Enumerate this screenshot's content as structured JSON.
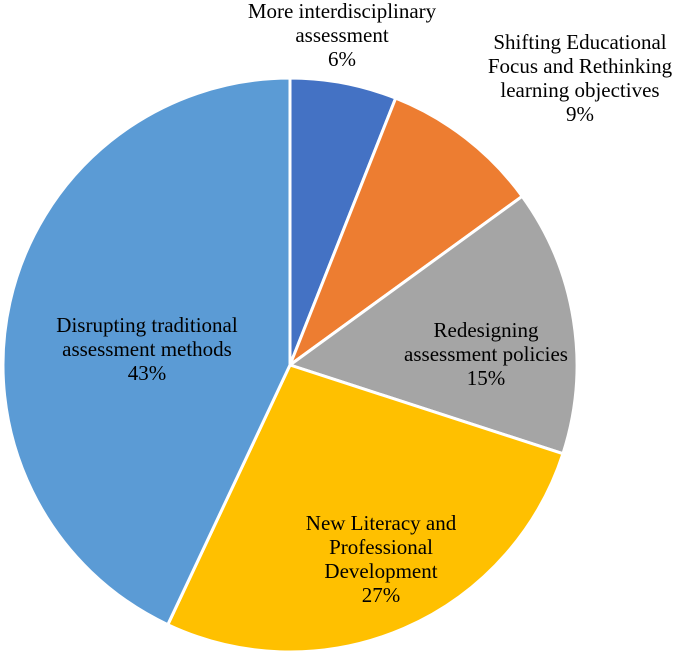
{
  "chart_data": {
    "type": "pie",
    "title": "",
    "start_angle_deg": 0,
    "direction": "clockwise",
    "slices": [
      {
        "label_lines": [
          "More interdisciplinary",
          "assessment"
        ],
        "value": 6,
        "value_label": "6%",
        "color": "#4472C4"
      },
      {
        "label_lines": [
          "Shifting Educational",
          "Focus and Rethinking",
          "learning objectives"
        ],
        "value": 9,
        "value_label": "9%",
        "color": "#ED7D31"
      },
      {
        "label_lines": [
          "Redesigning",
          "assessment policies"
        ],
        "value": 15,
        "value_label": "15%",
        "color": "#A5A5A5"
      },
      {
        "label_lines": [
          "New Literacy and",
          "Professional",
          "Development"
        ],
        "value": 27,
        "value_label": "27%",
        "color": "#FFC000"
      },
      {
        "label_lines": [
          "Disrupting traditional",
          "assessment methods"
        ],
        "value": 43,
        "value_label": "43%",
        "color": "#5B9BD5"
      }
    ]
  }
}
